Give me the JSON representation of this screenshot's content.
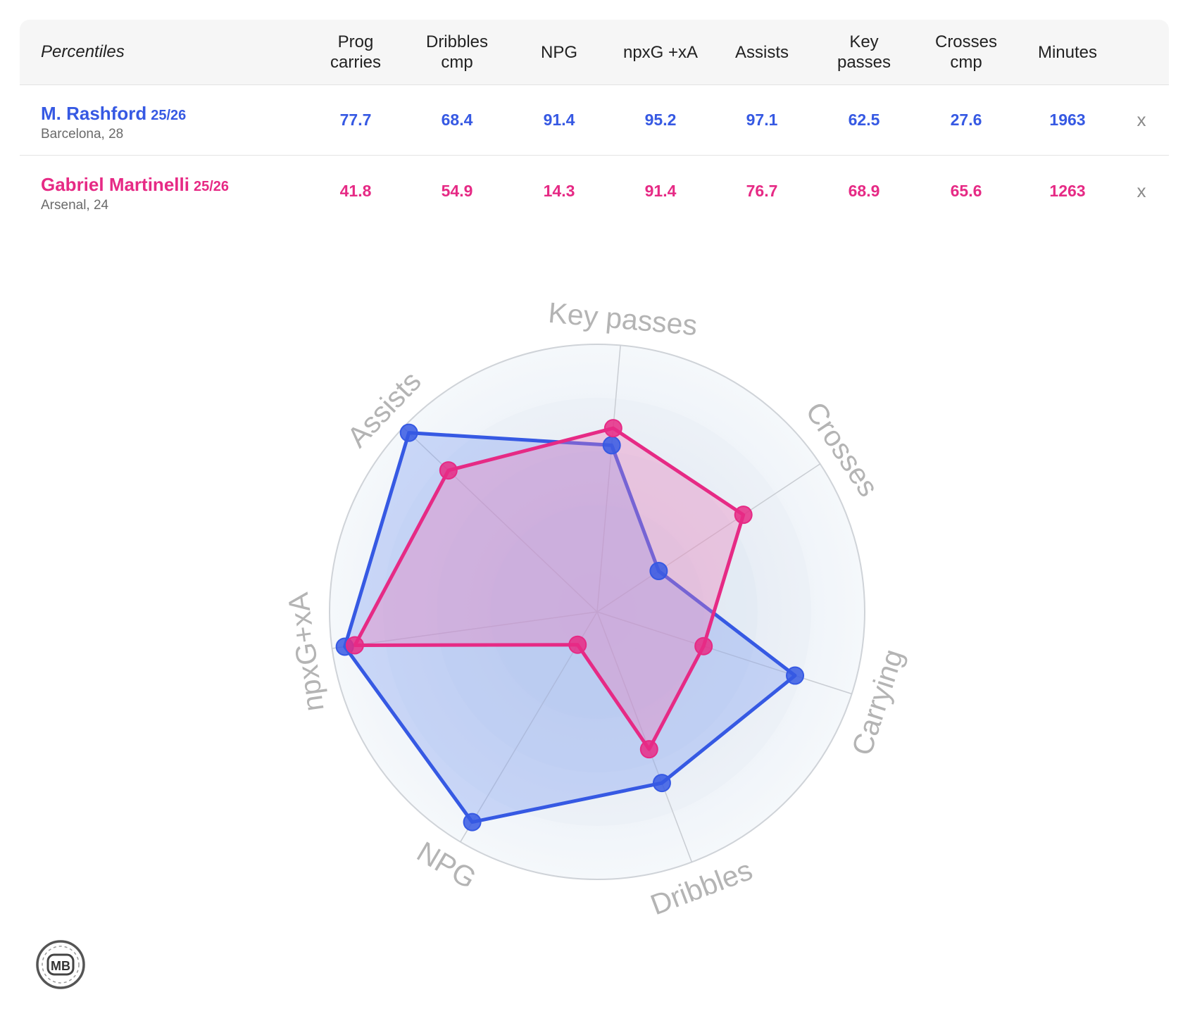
{
  "table": {
    "title": "Percentiles",
    "columns": [
      "Prog\ncarries",
      "Dribbles\ncmp",
      "NPG",
      "npxG +xA",
      "Assists",
      "Key\npasses",
      "Crosses\ncmp",
      "Minutes"
    ],
    "remove_label": "x",
    "players": [
      {
        "name": "M. Rashford",
        "season": "25/26",
        "club": "Barcelona, 28",
        "color": "#3659e3",
        "values": [
          "77.7",
          "68.4",
          "91.4",
          "95.2",
          "97.1",
          "62.5",
          "27.6",
          "1963"
        ]
      },
      {
        "name": "Gabriel Martinelli",
        "season": "25/26",
        "club": "Arsenal, 24",
        "color": "#e62a85",
        "values": [
          "41.8",
          "54.9",
          "14.3",
          "91.4",
          "76.7",
          "68.9",
          "65.6",
          "1263"
        ]
      }
    ]
  },
  "chart_data": {
    "type": "radar",
    "range": [
      0,
      100
    ],
    "axes": [
      "Key passes",
      "Crosses",
      "Carrying",
      "Dribbles",
      "NPG",
      "npxG+xA",
      "Assists"
    ],
    "series": [
      {
        "name": "M. Rashford",
        "color": "#3659e3",
        "values": [
          62.5,
          27.6,
          77.7,
          68.4,
          91.4,
          95.2,
          97.1
        ]
      },
      {
        "name": "Gabriel Martinelli",
        "color": "#e62a85",
        "values": [
          68.9,
          65.6,
          41.8,
          54.9,
          14.3,
          91.4,
          76.7
        ]
      }
    ]
  },
  "logo": {
    "text": "MB"
  }
}
